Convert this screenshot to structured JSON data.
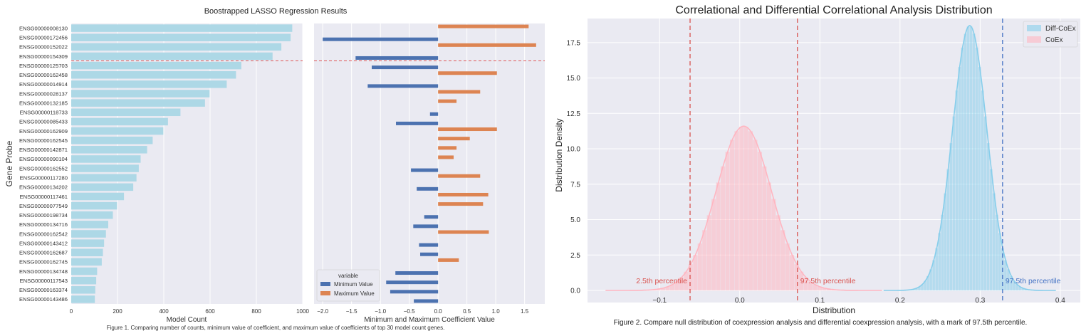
{
  "left_figure": {
    "title": "Boostrapped LASSO Regression Results",
    "caption": "Figure 1. Comparing number of counts, minimum value of coefficient, and maximum value of coefficients of top 30 model count genes."
  },
  "right_figure": {
    "caption": "Figure 2. Compare null distribution of coexpression analysis and differential coexpression analysis, with a mark of 97.5th percentile."
  },
  "chart_data": [
    {
      "type": "bar",
      "orientation": "horizontal",
      "title": "Boostrapped LASSO Regression Results",
      "xlabel": "Model Count",
      "ylabel": "Gene Probe",
      "xlim": [
        0,
        1000
      ],
      "xticks": [
        "0",
        "200",
        "400",
        "600",
        "800",
        "1000"
      ],
      "grid": true,
      "color": "#add8e6",
      "categories": [
        "ENSG00000008130",
        "ENSG00000172456",
        "ENSG00000152022",
        "ENSG00000154309",
        "ENSG00000125703",
        "ENSG00000162458",
        "ENSG00000014914",
        "ENSG00000028137",
        "ENSG00000132185",
        "ENSG00000118733",
        "ENSG00000085433",
        "ENSG00000162909",
        "ENSG00000162545",
        "ENSG00000142871",
        "ENSG00000090104",
        "ENSG00000162552",
        "ENSG00000117280",
        "ENSG00000134202",
        "ENSG00000117461",
        "ENSG00000077549",
        "ENSG00000198734",
        "ENSG00000134716",
        "ENSG00000162542",
        "ENSG00000143412",
        "ENSG00000162687",
        "ENSG00000162745",
        "ENSG00000134748",
        "ENSG00000117543",
        "ENSG00000163374",
        "ENSG00000143486"
      ],
      "values": [
        955,
        948,
        908,
        870,
        735,
        712,
        672,
        598,
        578,
        472,
        418,
        398,
        352,
        328,
        300,
        292,
        282,
        268,
        228,
        198,
        180,
        160,
        150,
        142,
        137,
        132,
        112,
        108,
        104,
        102
      ],
      "reference_line": {
        "between_rows": [
          3,
          4
        ],
        "style": "dashed",
        "color": "#e05555"
      }
    },
    {
      "type": "bar",
      "orientation": "horizontal",
      "xlabel": "Minimum and Maximum Coefficient Value",
      "xlim": [
        -2.15,
        1.85
      ],
      "xticks": [
        "−2.0",
        "−1.5",
        "−1.0",
        "−0.5",
        "0.0",
        "0.5",
        "1.0",
        "1.5"
      ],
      "grid": true,
      "legend": {
        "title": "variable",
        "position": "lower-left"
      },
      "series": [
        {
          "name": "Minimum Value",
          "color": "#4c72b0",
          "values": [
            0,
            -2.0,
            0,
            -1.43,
            -1.15,
            0,
            -1.22,
            0,
            0,
            -0.14,
            -0.73,
            0,
            0,
            0,
            0,
            -0.47,
            0,
            -0.37,
            0,
            0,
            -0.24,
            -0.43,
            0,
            -0.33,
            -0.31,
            0,
            -0.74,
            -0.9,
            -0.83,
            -0.42
          ]
        },
        {
          "name": "Maximum Value",
          "color": "#dd8452",
          "values": [
            1.57,
            0,
            1.7,
            0,
            0,
            1.02,
            0,
            0.73,
            0.32,
            0,
            0,
            1.02,
            0.55,
            0.32,
            0.27,
            0,
            0.73,
            0,
            0.87,
            0.78,
            0,
            0,
            0.88,
            0,
            0,
            0.36,
            0,
            0,
            0,
            0
          ]
        }
      ],
      "reference_line": {
        "between_rows": [
          3,
          4
        ],
        "style": "dashed",
        "color": "#e05555"
      }
    },
    {
      "type": "histogram_kde",
      "title": "Correlational and Differential Correlational Analysis Distribution",
      "xlabel": "Distribution",
      "ylabel": "Distribution Density",
      "xlim": [
        -0.19,
        0.425
      ],
      "ylim": [
        0,
        19.2
      ],
      "xticks": [
        "−0.1",
        "0.0",
        "0.1",
        "0.2",
        "0.3",
        "0.4"
      ],
      "yticks": [
        "0.0",
        "2.5",
        "5.0",
        "7.5",
        "10.0",
        "12.5",
        "15.0",
        "17.5"
      ],
      "grid": true,
      "legend": {
        "position": "top-right"
      },
      "series": [
        {
          "name": "Diff-CoEx",
          "color": "#87ceeb",
          "mean": 0.287,
          "sd": 0.0215,
          "peak_density": 18.7
        },
        {
          "name": "CoEx",
          "color": "#ffb6c1",
          "mean": 0.005,
          "sd": 0.0345,
          "peak_density": 11.6
        }
      ],
      "vlines": [
        {
          "x": -0.062,
          "color": "#d9534f",
          "label": "2.5th percentile"
        },
        {
          "x": 0.072,
          "color": "#d9534f",
          "label": "97.5th percentile"
        },
        {
          "x": 0.328,
          "color": "#4472c4",
          "label": "97.5th percentile"
        }
      ]
    }
  ]
}
